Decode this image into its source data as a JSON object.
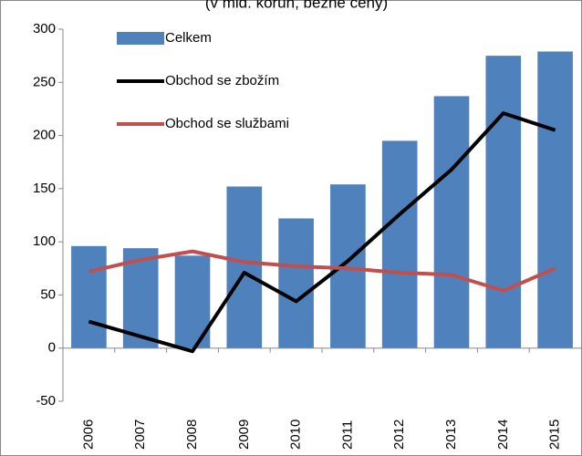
{
  "chart_data": {
    "type": "bar_line",
    "title": "(v mld. korun, běžné ceny)",
    "categories": [
      "2006",
      "2007",
      "2008",
      "2009",
      "2010",
      "2011",
      "2012",
      "2013",
      "2014",
      "2015"
    ],
    "series": [
      {
        "name": "Celkem",
        "type": "bar",
        "color": "#4f81bd",
        "values": [
          96,
          94,
          87,
          152,
          122,
          154,
          195,
          237,
          275,
          279
        ]
      },
      {
        "name": "Obchod se zbožím",
        "type": "line",
        "color": "#000000",
        "values": [
          25,
          11,
          -3,
          71,
          44,
          82,
          126,
          168,
          221,
          205
        ]
      },
      {
        "name": "Obchod se službami",
        "type": "line",
        "color": "#c0504d",
        "values": [
          72,
          83,
          91,
          81,
          77,
          75,
          71,
          69,
          54,
          75
        ]
      }
    ],
    "ylim": [
      -50,
      300
    ],
    "yticks": [
      -50,
      0,
      50,
      100,
      150,
      200,
      250,
      300
    ],
    "legend": "upper left",
    "grid": false
  }
}
